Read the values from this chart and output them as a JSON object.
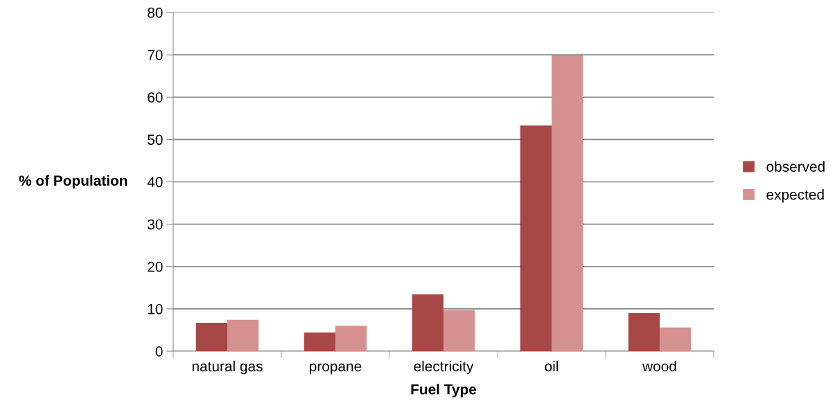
{
  "chart_data": {
    "type": "bar",
    "xlabel": "Fuel Type",
    "ylabel": "% of Population",
    "categories": [
      "natural gas",
      "propane",
      "electricity",
      "oil",
      "wood"
    ],
    "series": [
      {
        "name": "observed",
        "color": "#a84846",
        "values": [
          6.7,
          4.4,
          13.4,
          53.3,
          9.0
        ]
      },
      {
        "name": "expected",
        "color": "#d49190",
        "values": [
          7.4,
          6.0,
          9.7,
          69.9,
          5.6
        ]
      }
    ],
    "ylim": [
      0,
      80
    ],
    "yticks": [
      0,
      10,
      20,
      30,
      40,
      50,
      60,
      70,
      80
    ],
    "grid": "y",
    "legend": "right"
  }
}
